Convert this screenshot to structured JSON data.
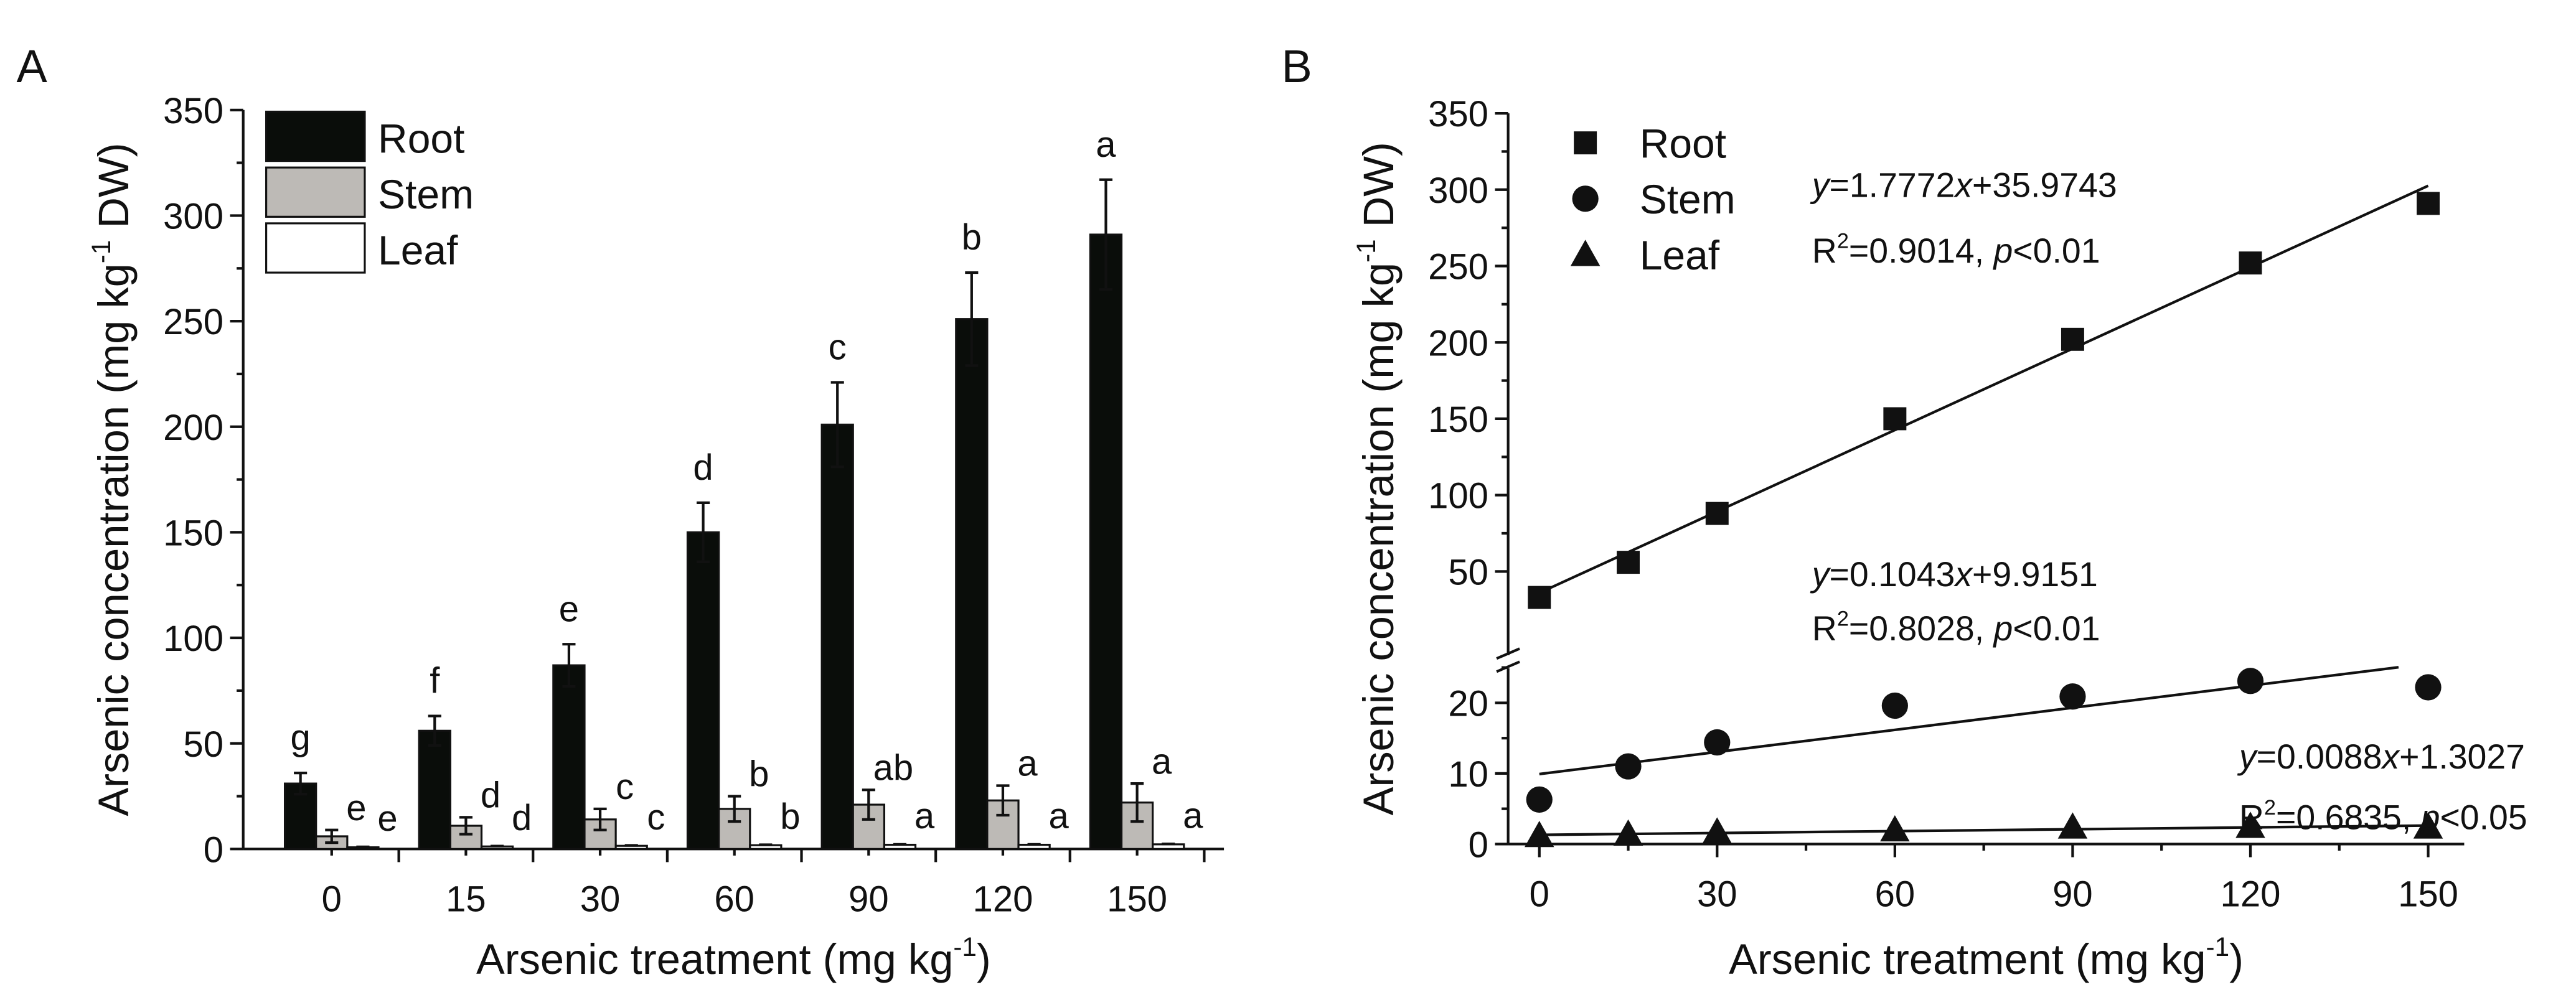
{
  "chart_data": [
    {
      "panel": "A",
      "type": "bar",
      "xlabel": "Arsenic treatment (mg kg-1)",
      "xlabel_main": "Arsenic treatment (mg kg",
      "xlabel_sup": "-1",
      "xlabel_end": ")",
      "ylabel_main": "Arsenic concentration (mg kg",
      "ylabel_sup": "-1",
      "ylabel_end": " DW)",
      "ylim": [
        0,
        350
      ],
      "yticks": [
        0,
        50,
        100,
        150,
        200,
        250,
        300,
        350
      ],
      "categories": [
        "0",
        "15",
        "30",
        "60",
        "90",
        "120",
        "150"
      ],
      "legend_position": "top-left",
      "series": [
        {
          "name": "Root",
          "color": "#0a0d0a",
          "values": [
            31,
            56,
            87,
            150,
            201,
            251,
            291
          ],
          "errors": [
            5,
            7,
            10,
            14,
            20,
            22,
            26
          ],
          "letters": [
            "g",
            "f",
            "e",
            "d",
            "c",
            "b",
            "a"
          ]
        },
        {
          "name": "Stem",
          "color": "#bdbab6",
          "values": [
            6,
            11,
            14,
            19,
            21,
            23,
            22
          ],
          "errors": [
            3,
            4,
            5,
            6,
            7,
            7,
            9
          ],
          "letters": [
            "e",
            "d",
            "c",
            "b",
            "ab",
            "a",
            "a"
          ]
        },
        {
          "name": "Leaf",
          "color": "#ffffff",
          "values": [
            0.8,
            1.2,
            1.5,
            1.8,
            2.0,
            2.0,
            2.2
          ],
          "errors": [
            0.2,
            0.2,
            0.2,
            0.2,
            0.2,
            0.2,
            0.2
          ],
          "letters": [
            "e",
            "d",
            "c",
            "b",
            "a",
            "a",
            "a"
          ]
        }
      ]
    },
    {
      "panel": "B",
      "type": "scatter",
      "xlabel_main": "Arsenic treatment (mg kg",
      "xlabel_sup": "-1",
      "xlabel_end": ")",
      "ylabel_main": "Arsenic concentration (mg kg",
      "ylabel_sup": "-1",
      "ylabel_end": " DW)",
      "xlim": [
        0,
        150
      ],
      "xticks": [
        0,
        30,
        60,
        90,
        120,
        150
      ],
      "y_axis_break": {
        "lower_range": [
          0,
          25
        ],
        "upper_range": [
          30,
          350
        ]
      },
      "yticks_lower": [
        0,
        10,
        20
      ],
      "yticks_upper": [
        50,
        100,
        150,
        200,
        250,
        300,
        350
      ],
      "legend_position": "top-left",
      "x": [
        0,
        15,
        30,
        60,
        90,
        120,
        150
      ],
      "series": [
        {
          "name": "Root",
          "marker": "square",
          "values": [
            33,
            56,
            88,
            150,
            202,
            252,
            291
          ],
          "fit": {
            "slope": 1.7772,
            "intercept": 35.9743,
            "x_range": [
              0,
              150
            ]
          },
          "eq_y": "y",
          "eq_rest": "=1.7772",
          "eq_x": "x",
          "eq_tail": "+35.9743",
          "r_label": "R",
          "r_sup": "2",
          "r_rest": "=0.9014, ",
          "p_label": "p",
          "p_rest": "<0.01"
        },
        {
          "name": "Stem",
          "marker": "circle",
          "values": [
            6.3,
            11,
            14.4,
            19.6,
            20.9,
            23.1,
            22.2
          ],
          "fit": {
            "slope": 0.1043,
            "intercept": 9.9151,
            "x_range": [
              0,
              145
            ]
          },
          "eq_y": "y",
          "eq_rest": "=0.1043",
          "eq_x": "x",
          "eq_tail": "+9.9151",
          "r_label": "R",
          "r_sup": "2",
          "r_rest": "=0.8028, ",
          "p_label": "p",
          "p_rest": "<0.01"
        },
        {
          "name": "Leaf",
          "marker": "triangle",
          "values": [
            1.2,
            1.4,
            1.7,
            2.0,
            2.4,
            2.5,
            2.4
          ],
          "fit": {
            "slope": 0.0088,
            "intercept": 1.3027,
            "x_range": [
              0,
              150
            ]
          },
          "eq_y": "y",
          "eq_rest": "=0.0088",
          "eq_x": "x",
          "eq_tail": "+1.3027",
          "r_label": "R",
          "r_sup": "2",
          "r_rest": "=0.6835, ",
          "p_label": "p",
          "p_rest": "<0.05"
        }
      ]
    }
  ]
}
